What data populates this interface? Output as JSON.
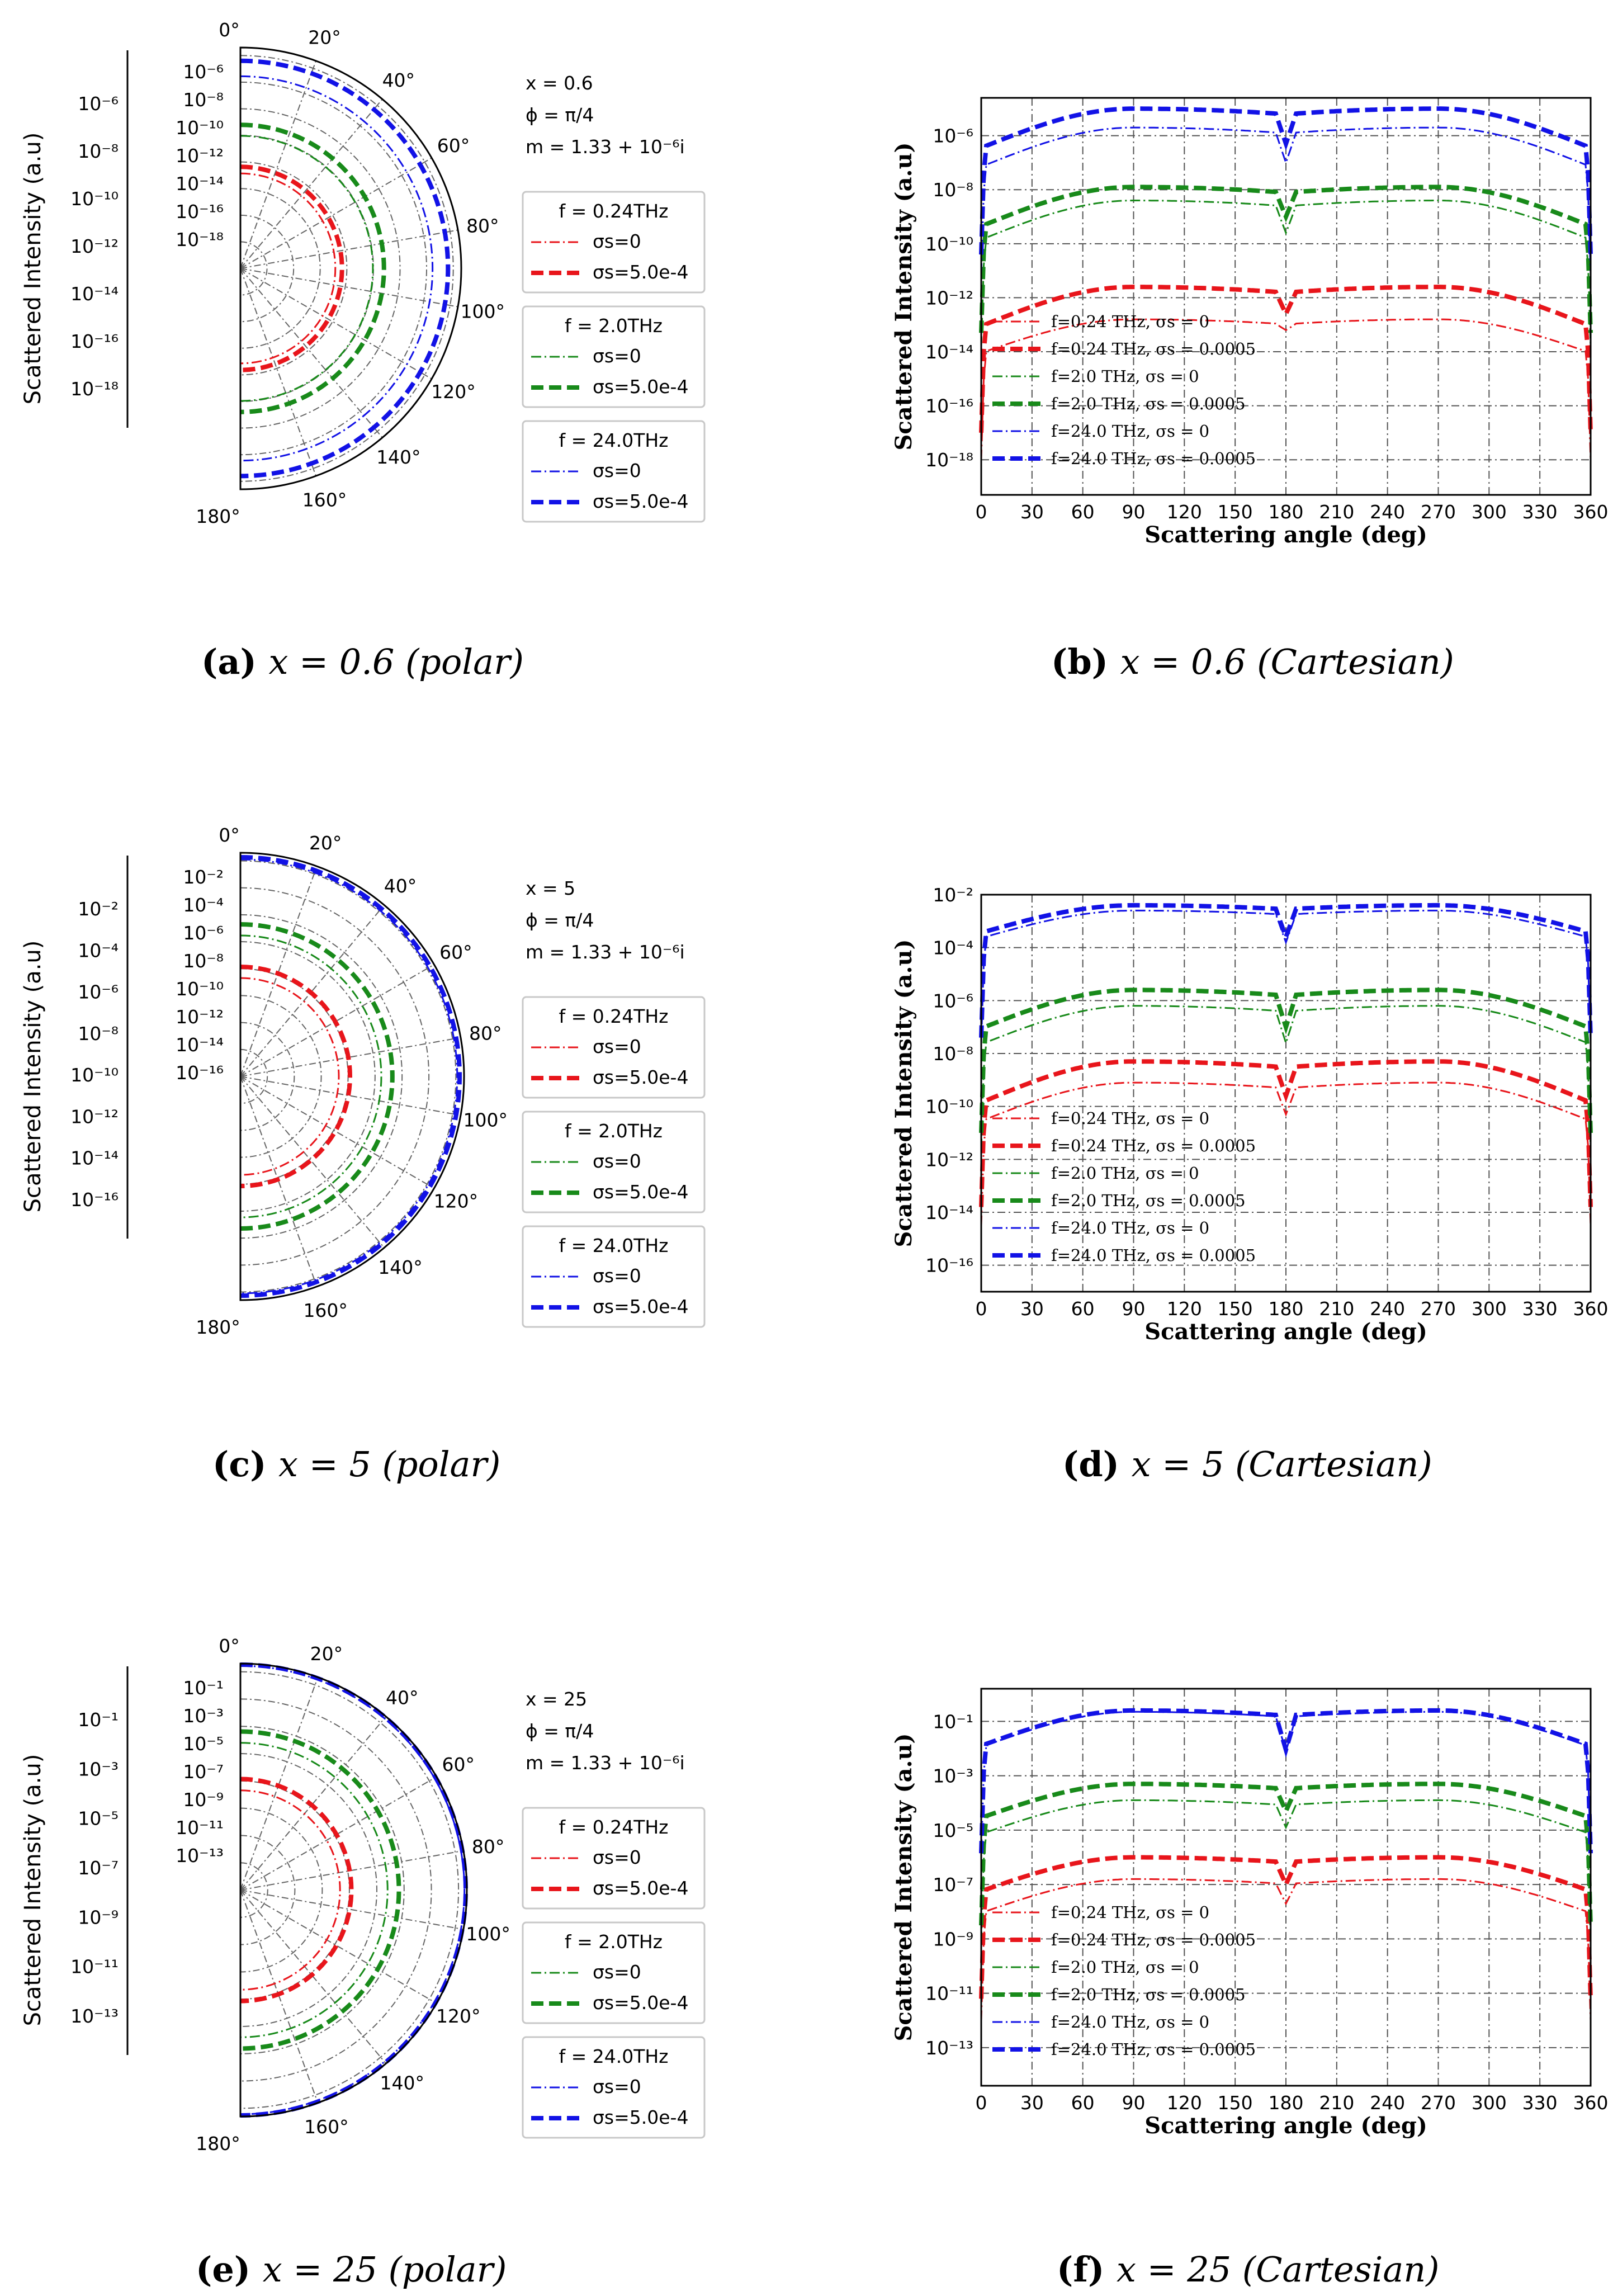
{
  "panels": [
    {
      "id": "a",
      "polar": {
        "annotation": [
          "x = 0.6",
          "ϕ = π/4",
          "m = 1.33 + 10⁻⁶i"
        ],
        "ylabel": "Scattered Intensity (a.u)",
        "outer_ticks": [
          "10⁻⁶",
          "10⁻⁸",
          "10⁻¹⁰",
          "10⁻¹²",
          "10⁻¹⁴",
          "10⁻¹⁶",
          "10⁻¹⁸"
        ],
        "inner_ticks": [
          "10⁻⁶",
          "10⁻⁸",
          "10⁻¹⁰",
          "10⁻¹²",
          "10⁻¹⁴",
          "10⁻¹⁶",
          "10⁻¹⁸"
        ],
        "angle_labels": [
          "0°",
          "20°",
          "40°",
          "60°",
          "80°",
          "100°",
          "120°",
          "140°",
          "160°",
          "180°"
        ],
        "legend_groups": [
          {
            "title": "f = 0.24THz",
            "entries": [
              "σs=0",
              "σs=5.0e-4"
            ],
            "color": "#e8151b"
          },
          {
            "title": "f = 2.0THz",
            "entries": [
              "σs=0",
              "σs=5.0e-4"
            ],
            "color": "#188a1a"
          },
          {
            "title": "f = 24.0THz",
            "entries": [
              "σs=0",
              "σs=5.0e-4"
            ],
            "color": "#1212e6"
          }
        ]
      },
      "caption": {
        "letter": "(a)",
        "text": "x = 0.6",
        "kind": "(polar)"
      }
    },
    {
      "id": "b",
      "caption": {
        "letter": "(b)",
        "text": "x = 0.6",
        "kind": "(Cartesian)"
      }
    },
    {
      "id": "c",
      "polar": {
        "annotation": [
          "x = 5",
          "ϕ = π/4",
          "m = 1.33 + 10⁻⁶i"
        ],
        "ylabel": "Scattered Intensity (a.u)",
        "outer_ticks": [
          "10⁻²",
          "10⁻⁴",
          "10⁻⁶",
          "10⁻⁸",
          "10⁻¹⁰",
          "10⁻¹²",
          "10⁻¹⁴",
          "10⁻¹⁶"
        ],
        "inner_ticks": [
          "10⁻²",
          "10⁻⁴",
          "10⁻⁶",
          "10⁻⁸",
          "10⁻¹⁰",
          "10⁻¹²",
          "10⁻¹⁴",
          "10⁻¹⁶"
        ],
        "angle_labels": [
          "0°",
          "20°",
          "40°",
          "60°",
          "80°",
          "100°",
          "120°",
          "140°",
          "160°",
          "180°"
        ],
        "legend_groups": [
          {
            "title": "f = 0.24THz",
            "entries": [
              "σs=0",
              "σs=5.0e-4"
            ],
            "color": "#e8151b"
          },
          {
            "title": "f = 2.0THz",
            "entries": [
              "σs=0",
              "σs=5.0e-4"
            ],
            "color": "#188a1a"
          },
          {
            "title": "f = 24.0THz",
            "entries": [
              "σs=0",
              "σs=5.0e-4"
            ],
            "color": "#1212e6"
          }
        ]
      },
      "caption": {
        "letter": "(c)",
        "text": "x = 5",
        "kind": "(polar)"
      }
    },
    {
      "id": "d",
      "caption": {
        "letter": "(d)",
        "text": "x = 5",
        "kind": "(Cartesian)"
      }
    },
    {
      "id": "e",
      "polar": {
        "annotation": [
          "x = 25",
          "ϕ = π/4",
          "m = 1.33 + 10⁻⁶i"
        ],
        "ylabel": "Scattered Intensity (a.u)",
        "outer_ticks": [
          "10⁻¹",
          "10⁻³",
          "10⁻⁵",
          "10⁻⁷",
          "10⁻⁹",
          "10⁻¹¹",
          "10⁻¹³"
        ],
        "inner_ticks": [
          "10⁻¹",
          "10⁻³",
          "10⁻⁵",
          "10⁻⁷",
          "10⁻⁹",
          "10⁻¹¹",
          "10⁻¹³"
        ],
        "angle_labels": [
          "0°",
          "20°",
          "40°",
          "60°",
          "80°",
          "100°",
          "120°",
          "140°",
          "160°",
          "180°"
        ],
        "legend_groups": [
          {
            "title": "f = 0.24THz",
            "entries": [
              "σs=0",
              "σs=5.0e-4"
            ],
            "color": "#e8151b"
          },
          {
            "title": "f = 2.0THz",
            "entries": [
              "σs=0",
              "σs=5.0e-4"
            ],
            "color": "#188a1a"
          },
          {
            "title": "f = 24.0THz",
            "entries": [
              "σs=0",
              "σs=5.0e-4"
            ],
            "color": "#1212e6"
          }
        ]
      },
      "caption": {
        "letter": "(e)",
        "text": "x = 25",
        "kind": "(polar)"
      }
    },
    {
      "id": "f",
      "caption": {
        "letter": "(f)",
        "text": "x = 25",
        "kind": "(Cartesian)"
      }
    }
  ],
  "chart_data": [
    {
      "type": "line",
      "panel": "b",
      "xlabel": "Scattering angle (deg)",
      "ylabel": "Scattered Intensity (a.u)",
      "xlim": [
        0,
        360
      ],
      "x_ticks": [
        "0",
        "30",
        "60",
        "90",
        "120",
        "150",
        "180",
        "210",
        "240",
        "270",
        "300",
        "330",
        "360"
      ],
      "ylim_log10": [
        -19.3,
        -4.6
      ],
      "y_ticks": [
        "10⁻⁶",
        "10⁻⁸",
        "10⁻¹⁰",
        "10⁻¹²",
        "10⁻¹⁴",
        "10⁻¹⁶",
        "10⁻¹⁸"
      ],
      "y_tick_exponents": [
        -6,
        -8,
        -10,
        -12,
        -14,
        -16,
        -18
      ],
      "series": [
        {
          "name": "f=0.24 THz, σs = 0",
          "color": "#e8151b",
          "style": "dashdot",
          "peak_log10": -12.8,
          "edge_log10": -14.0,
          "dip_log10": -13.2
        },
        {
          "name": "f=0.24 THz, σs = 0.0005",
          "color": "#e8151b",
          "style": "dashed",
          "peak_log10": -11.6,
          "edge_log10": -13.0,
          "dip_log10": -12.6
        },
        {
          "name": "f=2.0 THz, σs = 0",
          "color": "#188a1a",
          "style": "dashdot",
          "peak_log10": -8.4,
          "edge_log10": -9.8,
          "dip_log10": -9.6
        },
        {
          "name": "f=2.0 THz, σs = 0.0005",
          "color": "#188a1a",
          "style": "dashed",
          "peak_log10": -7.9,
          "edge_log10": -9.3,
          "dip_log10": -9.0
        },
        {
          "name": "f=24.0 THz, σs = 0",
          "color": "#1212e6",
          "style": "dashdot",
          "peak_log10": -5.7,
          "edge_log10": -7.1,
          "dip_log10": -7.0
        },
        {
          "name": "f=24.0 THz, σs = 0.0005",
          "color": "#1212e6",
          "style": "dashed",
          "peak_log10": -5.0,
          "edge_log10": -6.4,
          "dip_log10": -6.3
        }
      ]
    },
    {
      "type": "line",
      "panel": "d",
      "xlabel": "Scattering angle (deg)",
      "ylabel": "Scattered Intensity (a.u)",
      "xlim": [
        0,
        360
      ],
      "x_ticks": [
        "0",
        "30",
        "60",
        "90",
        "120",
        "150",
        "180",
        "210",
        "240",
        "270",
        "300",
        "330",
        "360"
      ],
      "ylim_log10": [
        -17.0,
        -2.0
      ],
      "y_ticks": [
        "10⁻²",
        "10⁻⁴",
        "10⁻⁶",
        "10⁻⁸",
        "10⁻¹⁰",
        "10⁻¹²",
        "10⁻¹⁴",
        "10⁻¹⁶"
      ],
      "y_tick_exponents": [
        -2,
        -4,
        -6,
        -8,
        -10,
        -12,
        -14,
        -16
      ],
      "series": [
        {
          "name": "f=0.24 THz, σs = 0",
          "color": "#e8151b",
          "style": "dashdot",
          "peak_log10": -9.1,
          "edge_log10": -10.5,
          "dip_log10": -10.3
        },
        {
          "name": "f=0.24 THz, σs = 0.0005",
          "color": "#e8151b",
          "style": "dashed",
          "peak_log10": -8.3,
          "edge_log10": -9.8,
          "dip_log10": -9.6
        },
        {
          "name": "f=2.0 THz, σs = 0",
          "color": "#188a1a",
          "style": "dashdot",
          "peak_log10": -6.2,
          "edge_log10": -7.6,
          "dip_log10": -7.6
        },
        {
          "name": "f=2.0 THz, σs = 0.0005",
          "color": "#188a1a",
          "style": "dashed",
          "peak_log10": -5.6,
          "edge_log10": -7.0,
          "dip_log10": -7.0
        },
        {
          "name": "f=24.0 THz, σs = 0",
          "color": "#1212e6",
          "style": "dashdot",
          "peak_log10": -2.6,
          "edge_log10": -3.6,
          "dip_log10": -3.8
        },
        {
          "name": "f=24.0 THz, σs = 0.0005",
          "color": "#1212e6",
          "style": "dashed",
          "peak_log10": -2.4,
          "edge_log10": -3.4,
          "dip_log10": -3.6
        }
      ]
    },
    {
      "type": "line",
      "panel": "f",
      "xlabel": "Scattering angle (deg)",
      "ylabel": "Scattered Intensity (a.u)",
      "xlim": [
        0,
        360
      ],
      "x_ticks": [
        "0",
        "30",
        "60",
        "90",
        "120",
        "150",
        "180",
        "210",
        "240",
        "270",
        "300",
        "330",
        "360"
      ],
      "ylim_log10": [
        -14.4,
        0.2
      ],
      "y_ticks": [
        "10⁻¹",
        "10⁻³",
        "10⁻⁵",
        "10⁻⁷",
        "10⁻⁹",
        "10⁻¹¹",
        "10⁻¹³"
      ],
      "y_tick_exponents": [
        -1,
        -3,
        -5,
        -7,
        -9,
        -11,
        -13
      ],
      "series": [
        {
          "name": "f=0.24 THz, σs = 0",
          "color": "#e8151b",
          "style": "dashdot",
          "peak_log10": -6.8,
          "edge_log10": -8.0,
          "dip_log10": -7.7
        },
        {
          "name": "f=0.24 THz, σs = 0.0005",
          "color": "#e8151b",
          "style": "dashed",
          "peak_log10": -6.0,
          "edge_log10": -7.2,
          "dip_log10": -7.0
        },
        {
          "name": "f=2.0 THz, σs = 0",
          "color": "#188a1a",
          "style": "dashdot",
          "peak_log10": -3.9,
          "edge_log10": -5.1,
          "dip_log10": -4.9
        },
        {
          "name": "f=2.0 THz, σs = 0.0005",
          "color": "#188a1a",
          "style": "dashed",
          "peak_log10": -3.3,
          "edge_log10": -4.5,
          "dip_log10": -4.3
        },
        {
          "name": "f=24.0 THz, σs = 0",
          "color": "#1212e6",
          "style": "dashdot",
          "peak_log10": -0.65,
          "edge_log10": -1.9,
          "dip_log10": -2.1
        },
        {
          "name": "f=24.0 THz, σs = 0.0005",
          "color": "#1212e6",
          "style": "dashed",
          "peak_log10": -0.6,
          "edge_log10": -1.85,
          "dip_log10": -2.05
        }
      ]
    }
  ]
}
